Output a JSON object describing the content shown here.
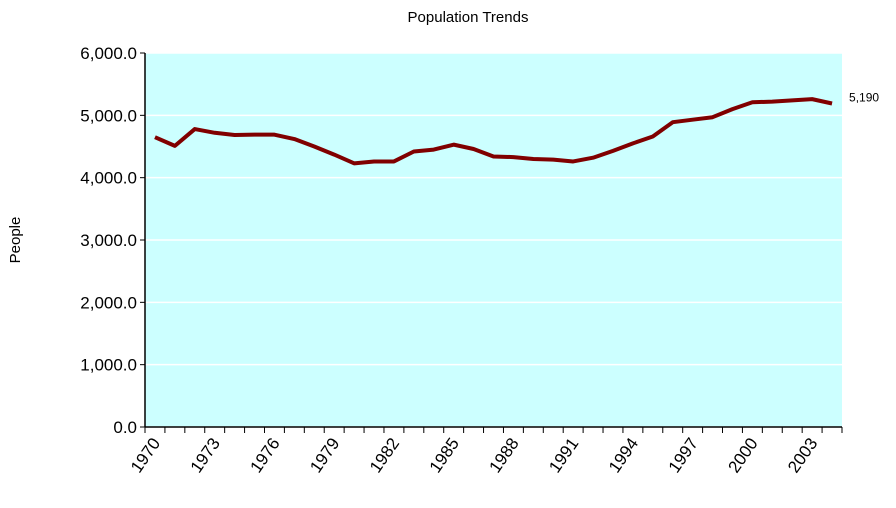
{
  "chart_data": {
    "type": "line",
    "title": "Population Trends",
    "y_label": "People",
    "categories": [
      "1970",
      null,
      null,
      "1973",
      null,
      null,
      "1976",
      null,
      null,
      "1979",
      null,
      null,
      "1982",
      null,
      null,
      "1985",
      null,
      null,
      "1988",
      null,
      null,
      "1991",
      null,
      null,
      "1994",
      null,
      null,
      "1997",
      null,
      null,
      "2000",
      null,
      null,
      "2003",
      null
    ],
    "series": [
      {
        "color": "#800000",
        "values": [
          4650,
          4510,
          4780,
          4720,
          4685,
          4690,
          4690,
          4620,
          4500,
          4370,
          4230,
          4260,
          4260,
          4420,
          4450,
          4530,
          4460,
          4340,
          4330,
          4300,
          4290,
          4260,
          4320,
          4430,
          4550,
          4660,
          4890,
          4930,
          4970,
          5100,
          5210,
          5220,
          5240,
          5260,
          5190
        ],
        "value_labels": [
          null,
          null,
          null,
          null,
          null,
          null,
          null,
          null,
          null,
          null,
          null,
          null,
          null,
          null,
          null,
          null,
          null,
          null,
          null,
          null,
          null,
          null,
          null,
          null,
          null,
          null,
          null,
          null,
          null,
          null,
          null,
          null,
          null,
          null,
          "5,190"
        ]
      }
    ],
    "ylim": [
      0,
      6000
    ],
    "yticks": [
      {
        "value": 0,
        "label": "0.0"
      },
      {
        "value": 1000,
        "label": "1,000.0"
      },
      {
        "value": 2000,
        "label": "2,000.0"
      },
      {
        "value": 3000,
        "label": "3,000.0"
      },
      {
        "value": 4000,
        "label": "4,000.0"
      },
      {
        "value": 5000,
        "label": "5,000.0"
      },
      {
        "value": 6000,
        "label": "6,000.0"
      }
    ],
    "grid": true,
    "plot_background": "#ccffff"
  }
}
